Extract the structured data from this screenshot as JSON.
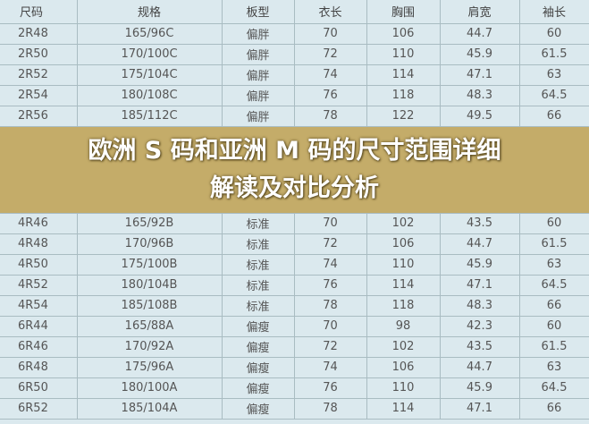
{
  "headers": [
    "尺码",
    "规格",
    "板型",
    "衣长",
    "胸围",
    "肩宽",
    "袖长"
  ],
  "rows": [
    [
      "2R48",
      "165/96C",
      "偏胖",
      "70",
      "106",
      "44.7",
      "60"
    ],
    [
      "2R50",
      "170/100C",
      "偏胖",
      "72",
      "110",
      "45.9",
      "61.5"
    ],
    [
      "2R52",
      "175/104C",
      "偏胖",
      "74",
      "114",
      "47.1",
      "63"
    ],
    [
      "2R54",
      "180/108C",
      "偏胖",
      "76",
      "118",
      "48.3",
      "64.5"
    ],
    [
      "2R56",
      "185/112C",
      "偏胖",
      "78",
      "122",
      "49.5",
      "66"
    ],
    [
      "4R46",
      "165/92B",
      "标准",
      "70",
      "102",
      "43.5",
      "60"
    ],
    [
      "4R48",
      "170/96B",
      "标准",
      "72",
      "106",
      "44.7",
      "61.5"
    ],
    [
      "4R50",
      "175/100B",
      "标准",
      "74",
      "110",
      "45.9",
      "63"
    ],
    [
      "4R52",
      "180/104B",
      "标准",
      "76",
      "114",
      "47.1",
      "64.5"
    ],
    [
      "4R54",
      "185/108B",
      "标准",
      "78",
      "118",
      "48.3",
      "66"
    ],
    [
      "6R44",
      "165/88A",
      "偏瘦",
      "70",
      "98",
      "42.3",
      "60"
    ],
    [
      "6R46",
      "170/92A",
      "偏瘦",
      "72",
      "102",
      "43.5",
      "61.5"
    ],
    [
      "6R48",
      "175/96A",
      "偏瘦",
      "74",
      "106",
      "44.7",
      "63"
    ],
    [
      "6R50",
      "180/100A",
      "偏瘦",
      "76",
      "110",
      "45.9",
      "64.5"
    ],
    [
      "6R52",
      "185/104A",
      "偏瘦",
      "78",
      "114",
      "47.1",
      "66"
    ]
  ],
  "banner": {
    "line1": "欧洲 S 码和亚洲 M 码的尺寸范围详细",
    "line2": "解读及对比分析"
  },
  "colors": {
    "banner": "#c4ac69",
    "table_bg": "#dbe9ee"
  }
}
